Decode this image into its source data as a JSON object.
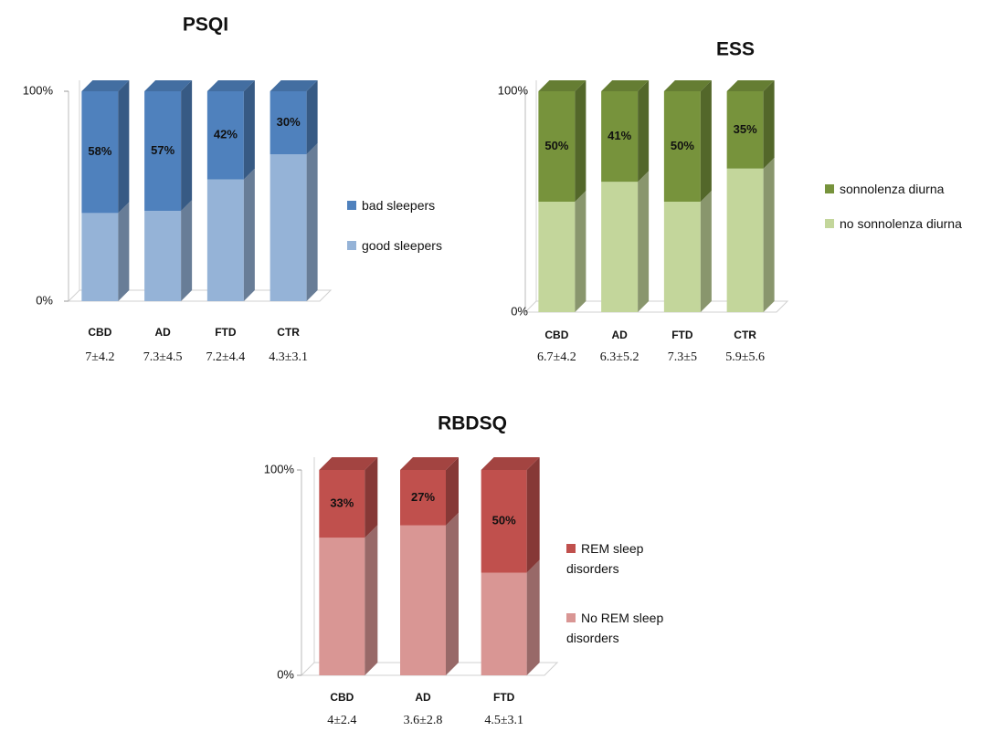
{
  "chart_data": [
    {
      "type": "bar",
      "stacked": true,
      "title": "PSQI",
      "categories": [
        "CBD",
        "AD",
        "FTD",
        "CTR"
      ],
      "category_notes": [
        "7±4.2",
        "7.3±4.5",
        "7.2±4.4",
        "4.3±3.1"
      ],
      "series": [
        {
          "name": "good sleepers",
          "color": "#95b3d7",
          "values": [
            42,
            43,
            58,
            70
          ]
        },
        {
          "name": "bad sleepers",
          "color": "#4f81bd",
          "values": [
            58,
            57,
            42,
            30
          ],
          "value_labels": [
            "58%",
            "57%",
            "42%",
            "30%"
          ]
        }
      ],
      "ylim": [
        0,
        100
      ],
      "yticks": [
        {
          "value": 0,
          "label": "0%"
        },
        {
          "value": 100,
          "label": "100%"
        }
      ]
    },
    {
      "type": "bar",
      "stacked": true,
      "title": "ESS",
      "categories": [
        "CBD",
        "AD",
        "FTD",
        "CTR"
      ],
      "category_notes": [
        "6.7±4.2",
        "6.3±5.2",
        "7.3±5",
        "5.9±5.6"
      ],
      "series": [
        {
          "name": "no sonnolenza diurna",
          "color": "#c3d69b",
          "values": [
            50,
            59,
            50,
            65
          ]
        },
        {
          "name": "sonnolenza diurna",
          "color": "#77933c",
          "values": [
            50,
            41,
            50,
            35
          ],
          "value_labels": [
            "50%",
            "41%",
            "50%",
            "35%"
          ]
        }
      ],
      "ylim": [
        0,
        100
      ],
      "yticks": [
        {
          "value": 0,
          "label": "0%"
        },
        {
          "value": 100,
          "label": "100%"
        }
      ]
    },
    {
      "type": "bar",
      "stacked": true,
      "title": "RBDSQ",
      "categories": [
        "CBD",
        "AD",
        "FTD"
      ],
      "category_notes": [
        "4±2.4",
        "3.6±2.8",
        "4.5±3.1"
      ],
      "series": [
        {
          "name": "No REM sleep disorders",
          "color": "#d99694",
          "values": [
            67,
            73,
            50
          ]
        },
        {
          "name": "REM sleep disorders",
          "color": "#c0504d",
          "values": [
            33,
            27,
            50
          ],
          "value_labels": [
            "33%",
            "27%",
            "50%"
          ]
        }
      ],
      "ylim": [
        0,
        100
      ],
      "yticks": [
        {
          "value": 0,
          "label": "0%"
        },
        {
          "value": 100,
          "label": "100%"
        }
      ]
    }
  ]
}
